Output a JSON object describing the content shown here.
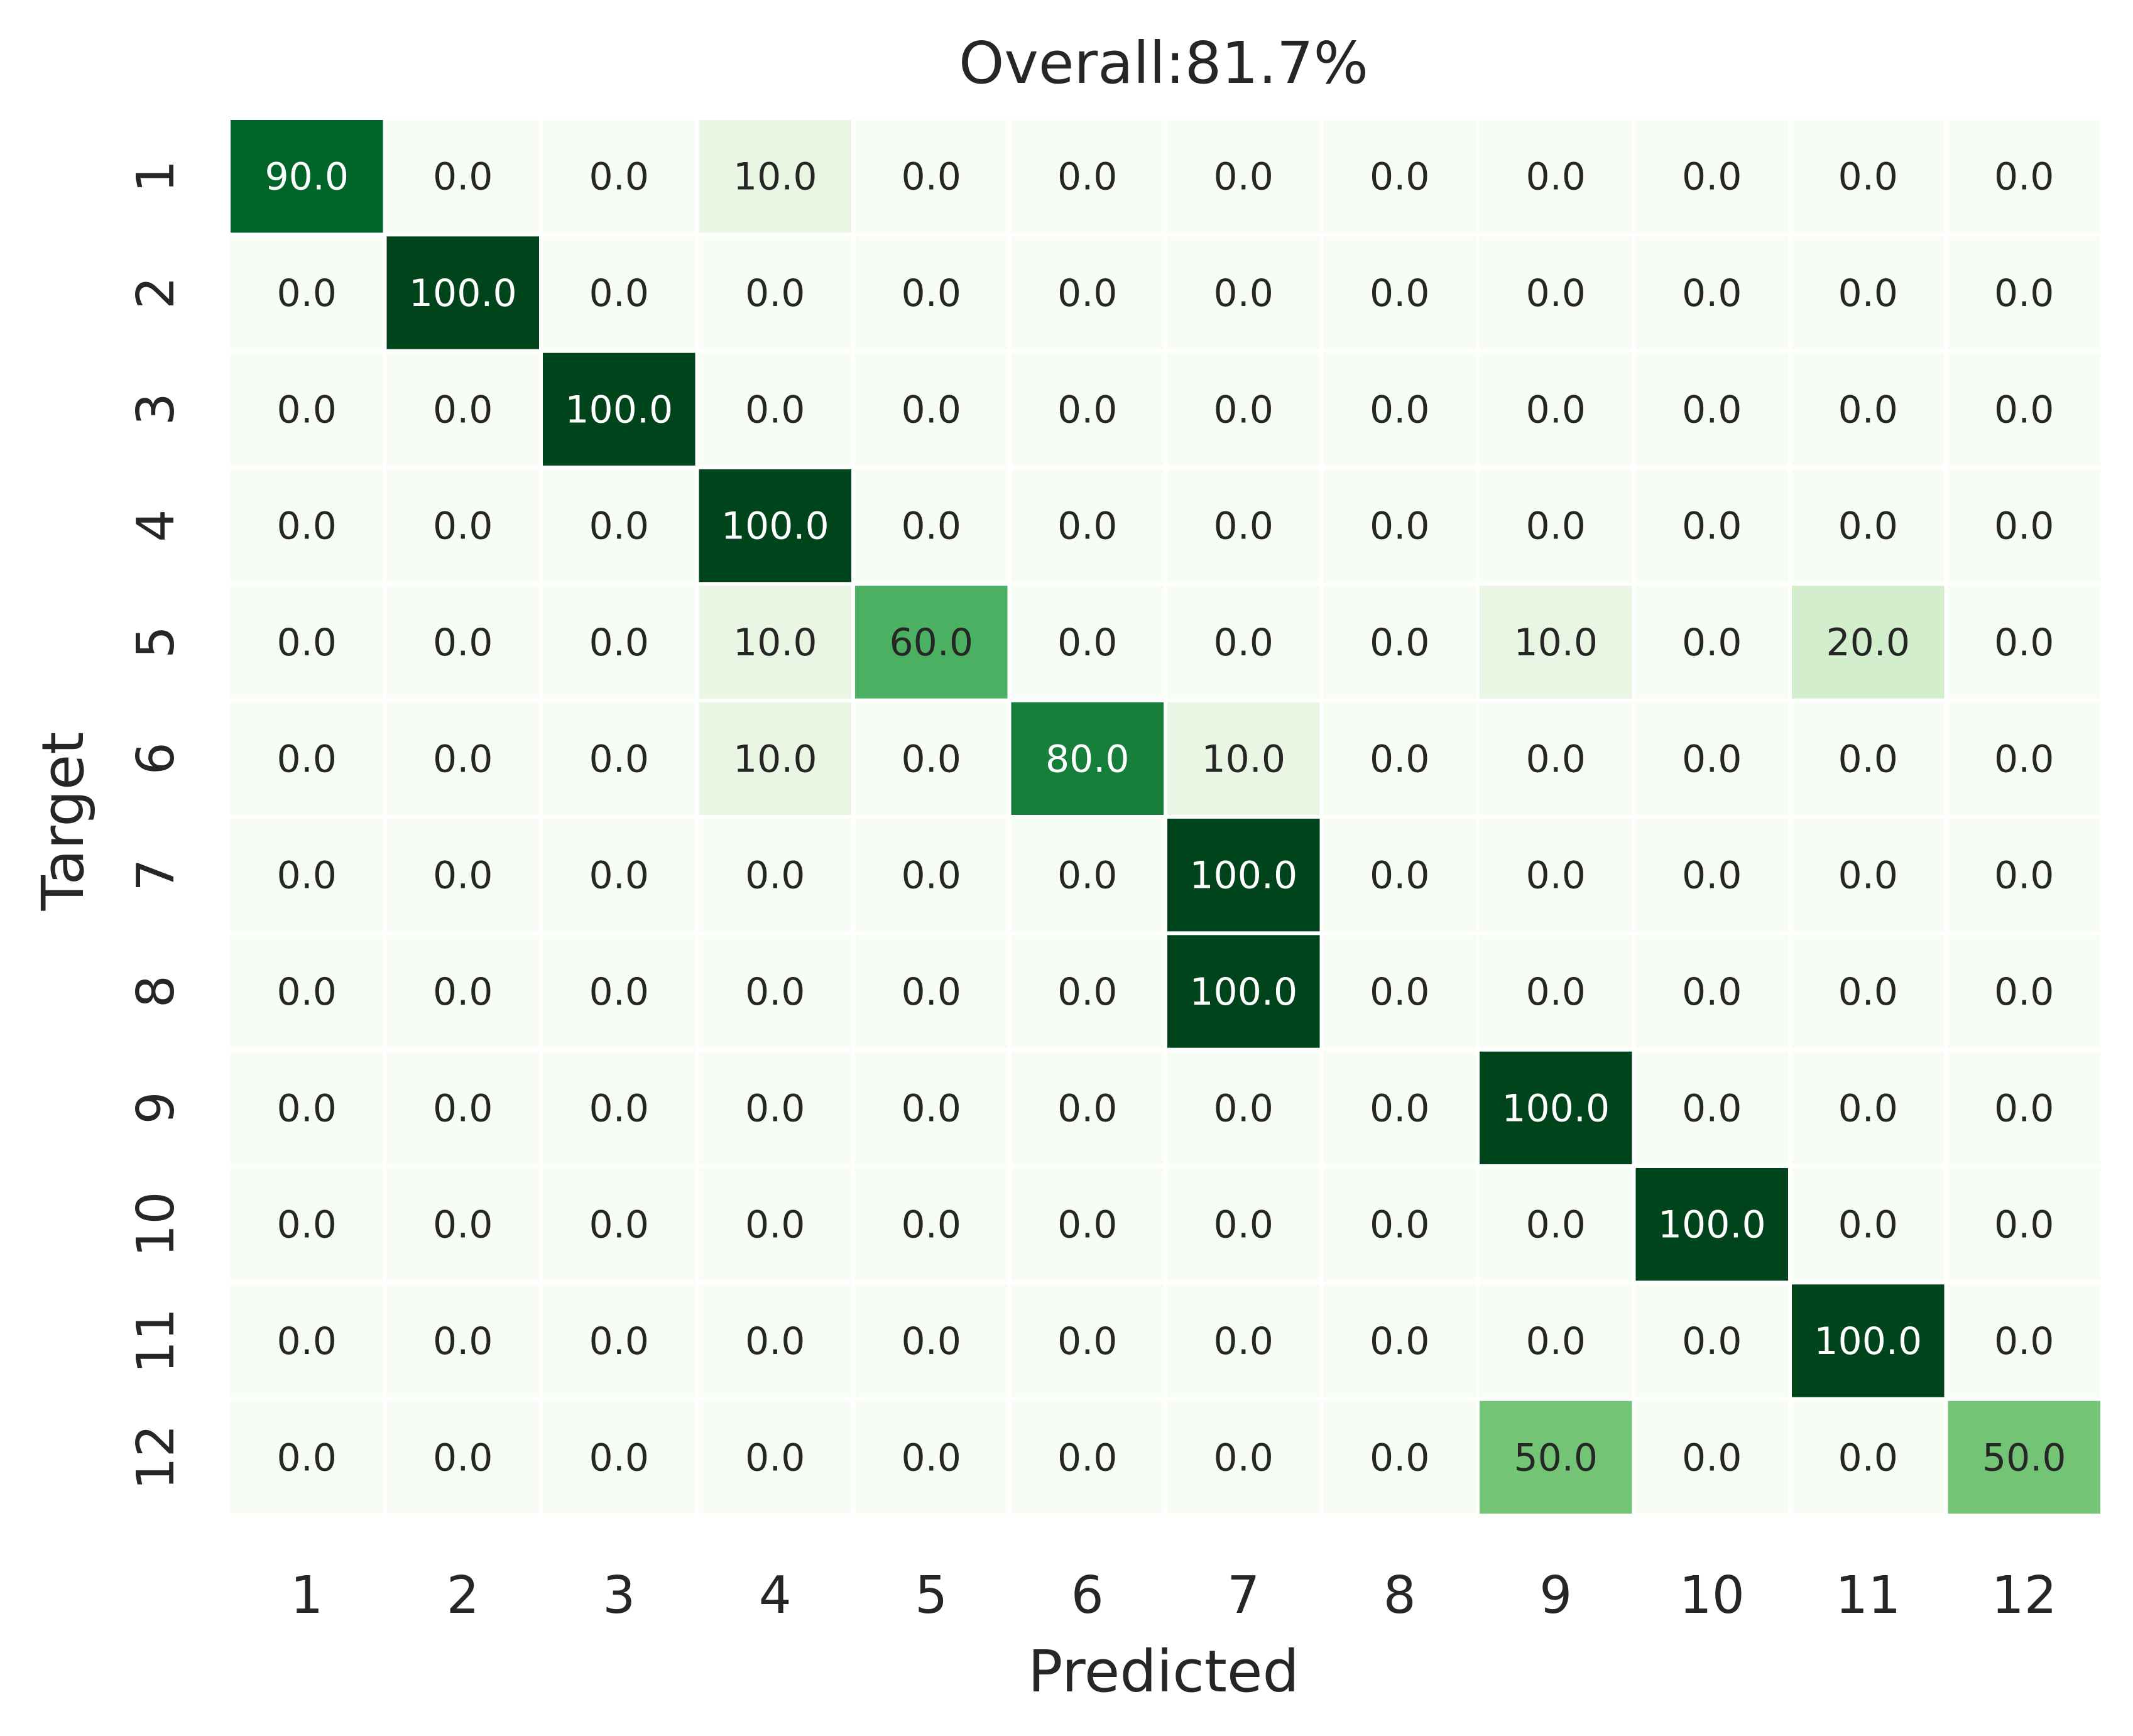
{
  "chart_data": {
    "type": "heatmap",
    "title": "Overall:81.7%",
    "xlabel": "Predicted",
    "ylabel": "Target",
    "x_categories": [
      "1",
      "2",
      "3",
      "4",
      "5",
      "6",
      "7",
      "8",
      "9",
      "10",
      "11",
      "12"
    ],
    "y_categories": [
      "1",
      "2",
      "3",
      "4",
      "5",
      "6",
      "7",
      "8",
      "9",
      "10",
      "11",
      "12"
    ],
    "value_range": [
      0,
      100
    ],
    "colormap": "Greens",
    "colorbar": false,
    "values": [
      [
        90.0,
        0.0,
        0.0,
        10.0,
        0.0,
        0.0,
        0.0,
        0.0,
        0.0,
        0.0,
        0.0,
        0.0
      ],
      [
        0.0,
        100.0,
        0.0,
        0.0,
        0.0,
        0.0,
        0.0,
        0.0,
        0.0,
        0.0,
        0.0,
        0.0
      ],
      [
        0.0,
        0.0,
        100.0,
        0.0,
        0.0,
        0.0,
        0.0,
        0.0,
        0.0,
        0.0,
        0.0,
        0.0
      ],
      [
        0.0,
        0.0,
        0.0,
        100.0,
        0.0,
        0.0,
        0.0,
        0.0,
        0.0,
        0.0,
        0.0,
        0.0
      ],
      [
        0.0,
        0.0,
        0.0,
        10.0,
        60.0,
        0.0,
        0.0,
        0.0,
        10.0,
        0.0,
        20.0,
        0.0
      ],
      [
        0.0,
        0.0,
        0.0,
        10.0,
        0.0,
        80.0,
        10.0,
        0.0,
        0.0,
        0.0,
        0.0,
        0.0
      ],
      [
        0.0,
        0.0,
        0.0,
        0.0,
        0.0,
        0.0,
        100.0,
        0.0,
        0.0,
        0.0,
        0.0,
        0.0
      ],
      [
        0.0,
        0.0,
        0.0,
        0.0,
        0.0,
        0.0,
        100.0,
        0.0,
        0.0,
        0.0,
        0.0,
        0.0
      ],
      [
        0.0,
        0.0,
        0.0,
        0.0,
        0.0,
        0.0,
        0.0,
        0.0,
        100.0,
        0.0,
        0.0,
        0.0
      ],
      [
        0.0,
        0.0,
        0.0,
        0.0,
        0.0,
        0.0,
        0.0,
        0.0,
        0.0,
        100.0,
        0.0,
        0.0
      ],
      [
        0.0,
        0.0,
        0.0,
        0.0,
        0.0,
        0.0,
        0.0,
        0.0,
        0.0,
        0.0,
        100.0,
        0.0
      ],
      [
        0.0,
        0.0,
        0.0,
        0.0,
        0.0,
        0.0,
        0.0,
        0.0,
        50.0,
        0.0,
        0.0,
        50.0
      ]
    ]
  }
}
